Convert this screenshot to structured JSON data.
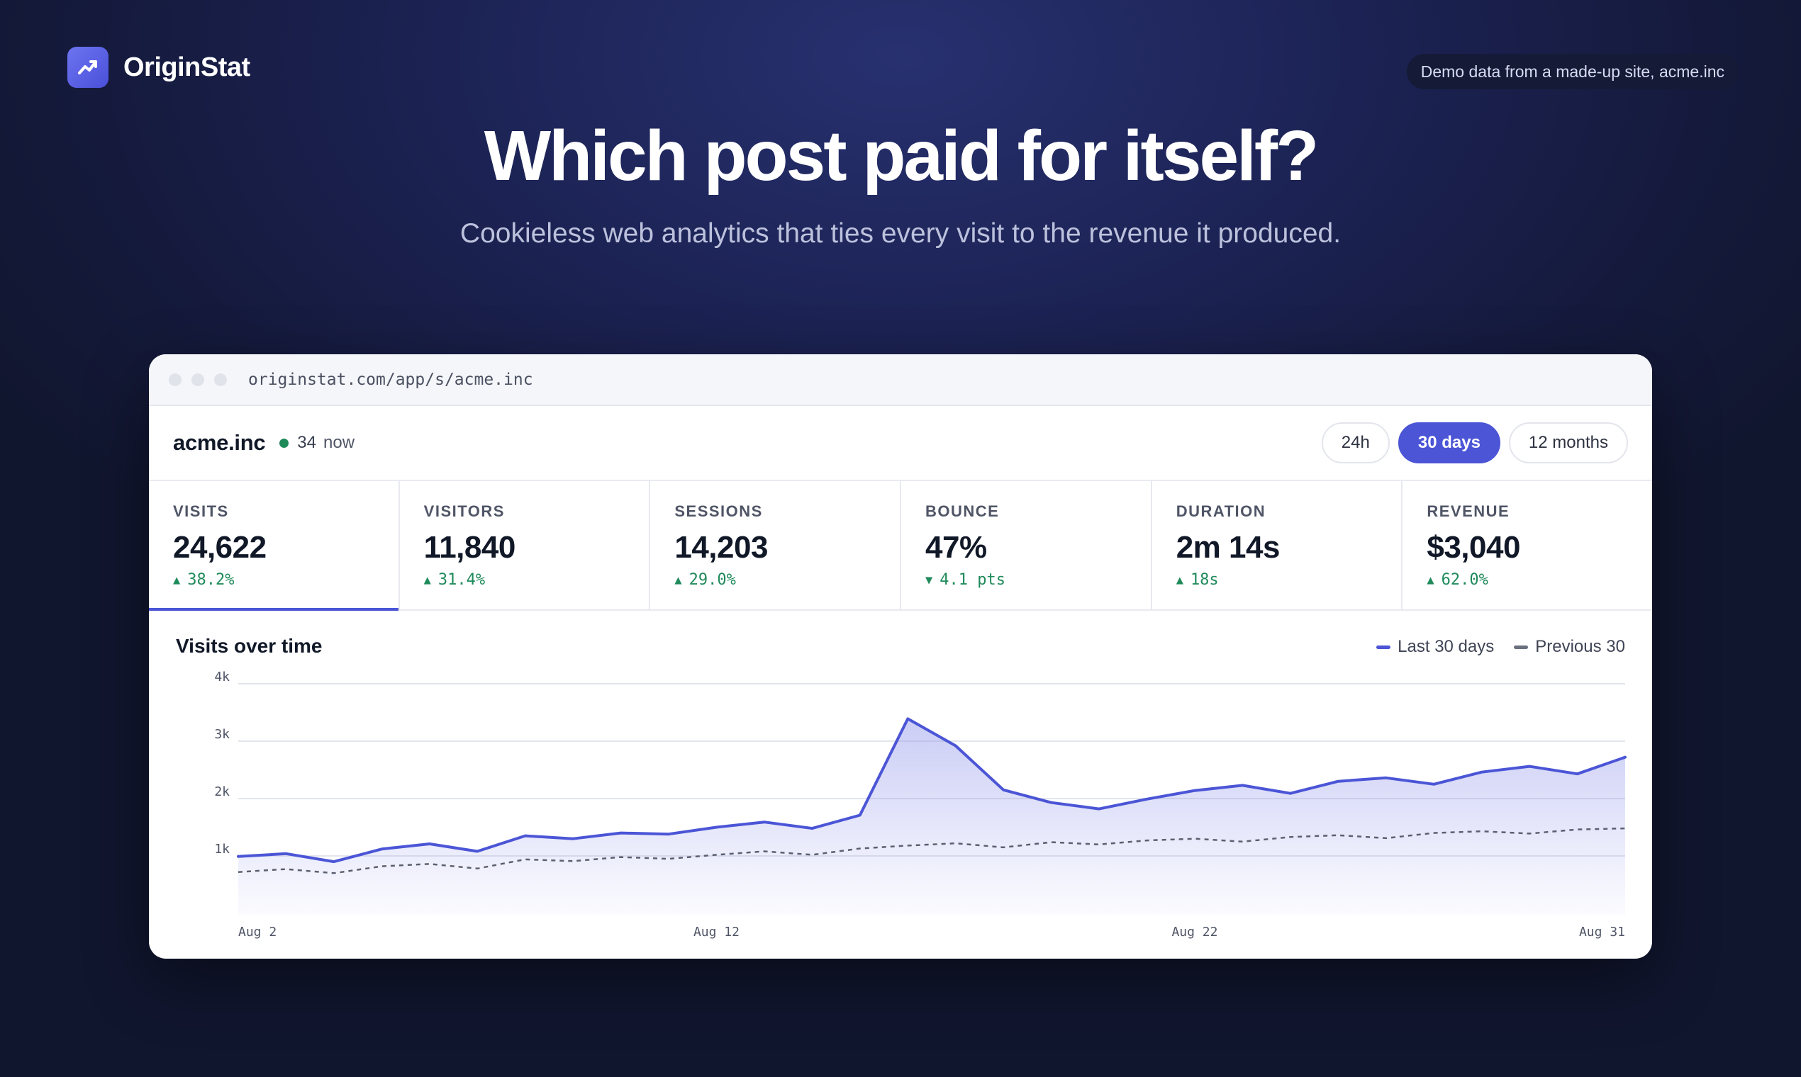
{
  "brand": {
    "name": "OriginStat",
    "logo_icon": "trend-up-icon",
    "accent": "#5a60e2"
  },
  "demo_badge": "Demo data from a made-up site, acme.inc",
  "hero": {
    "title": "Which post paid for itself?",
    "subtitle": "Cookieless web analytics that ties every visit to the revenue it produced."
  },
  "window": {
    "url": "originstat.com/app/s/acme.inc"
  },
  "site": {
    "name": "acme.inc",
    "live_count": "34",
    "live_label": "now",
    "live_color": "#1f8a5a"
  },
  "ranges": [
    {
      "label": "24h",
      "active": false
    },
    {
      "label": "30 days",
      "active": true
    },
    {
      "label": "12 months",
      "active": false
    }
  ],
  "stats": [
    {
      "label": "VISITS",
      "value": "24,622",
      "arrow": "▲",
      "delta": "38.2%",
      "active": true
    },
    {
      "label": "VISITORS",
      "value": "11,840",
      "arrow": "▲",
      "delta": "31.4%",
      "active": false
    },
    {
      "label": "SESSIONS",
      "value": "14,203",
      "arrow": "▲",
      "delta": "29.0%",
      "active": false
    },
    {
      "label": "BOUNCE",
      "value": "47%",
      "arrow": "▼",
      "delta": "4.1 pts",
      "active": false
    },
    {
      "label": "DURATION",
      "value": "2m 14s",
      "arrow": "▲",
      "delta": "18s",
      "active": false
    },
    {
      "label": "REVENUE",
      "value": "$3,040",
      "arrow": "▲",
      "delta": "62.0%",
      "active": false
    }
  ],
  "chart": {
    "title": "Visits over time",
    "legend": [
      {
        "label": "Last 30 days",
        "color": "#4b55d6"
      },
      {
        "label": "Previous 30",
        "color": "#6b7080"
      }
    ]
  },
  "chart_data": {
    "type": "line",
    "title": "Visits over time",
    "x_axis": "day index, Aug 2 to Aug 31",
    "x_tick_labels": [
      {
        "label": "Aug 2",
        "day": 0
      },
      {
        "label": "Aug 12",
        "day": 10
      },
      {
        "label": "Aug 22",
        "day": 20
      },
      {
        "label": "Aug 31",
        "day": 29
      }
    ],
    "y_tick_labels": [
      {
        "label": "1k",
        "value": 1000
      },
      {
        "label": "2k",
        "value": 2000
      },
      {
        "label": "3k",
        "value": 3000
      },
      {
        "label": "4k",
        "value": 4000
      }
    ],
    "ylim": [
      0,
      4000
    ],
    "grid": true,
    "legend_position": "top-right",
    "series": [
      {
        "name": "Last 30 days",
        "style": "solid",
        "fill": true,
        "values": [
          990,
          1040,
          900,
          1120,
          1210,
          1080,
          1350,
          1300,
          1400,
          1380,
          1500,
          1590,
          1480,
          1710,
          3390,
          2920,
          2150,
          1930,
          1820,
          1990,
          2140,
          2230,
          2090,
          2300,
          2360,
          2250,
          2460,
          2560,
          2430,
          2720
        ]
      },
      {
        "name": "Previous 30",
        "style": "dashed",
        "fill": false,
        "values": [
          720,
          770,
          700,
          820,
          860,
          780,
          940,
          910,
          980,
          950,
          1020,
          1080,
          1020,
          1130,
          1180,
          1220,
          1150,
          1240,
          1200,
          1270,
          1300,
          1250,
          1330,
          1360,
          1310,
          1400,
          1430,
          1390,
          1460,
          1480
        ]
      }
    ]
  }
}
